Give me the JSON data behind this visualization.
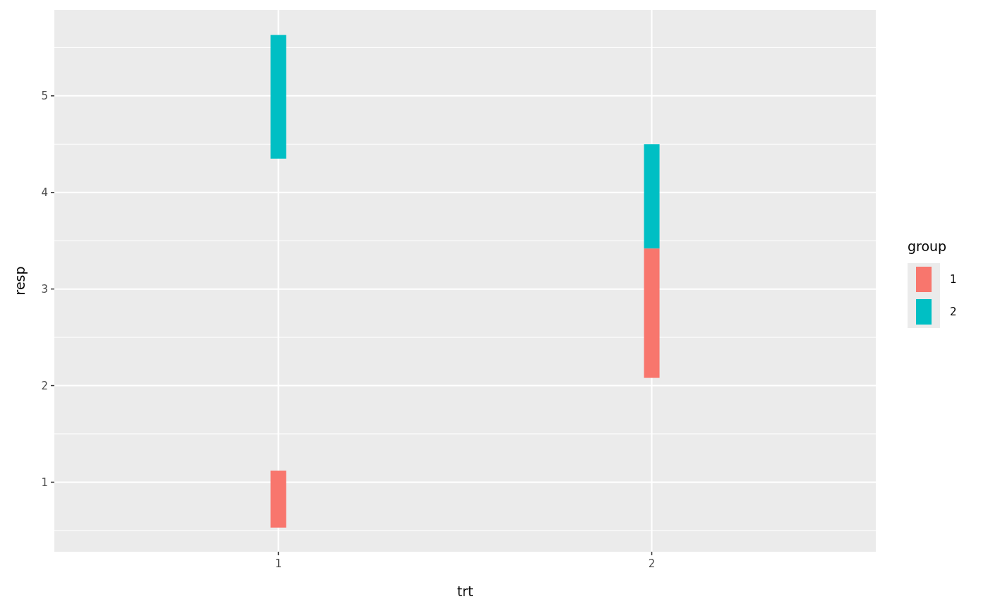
{
  "chart_data": {
    "type": "bar",
    "xlabel": "trt",
    "ylabel": "resp",
    "legend_title": "group",
    "categories": [
      "1",
      "2"
    ],
    "series": [
      {
        "name": "1",
        "color": "#f8766d",
        "base": [
          0.53,
          2.08
        ],
        "values": [
          0.59,
          1.34
        ]
      },
      {
        "name": "2",
        "color": "#00bfc4",
        "base": [
          4.35,
          3.42
        ],
        "values": [
          1.28,
          1.08
        ]
      }
    ],
    "ylim": [
      0.28,
      5.89
    ],
    "yticks": [
      1,
      2,
      3,
      4,
      5
    ],
    "grid": true,
    "legend": "right"
  }
}
